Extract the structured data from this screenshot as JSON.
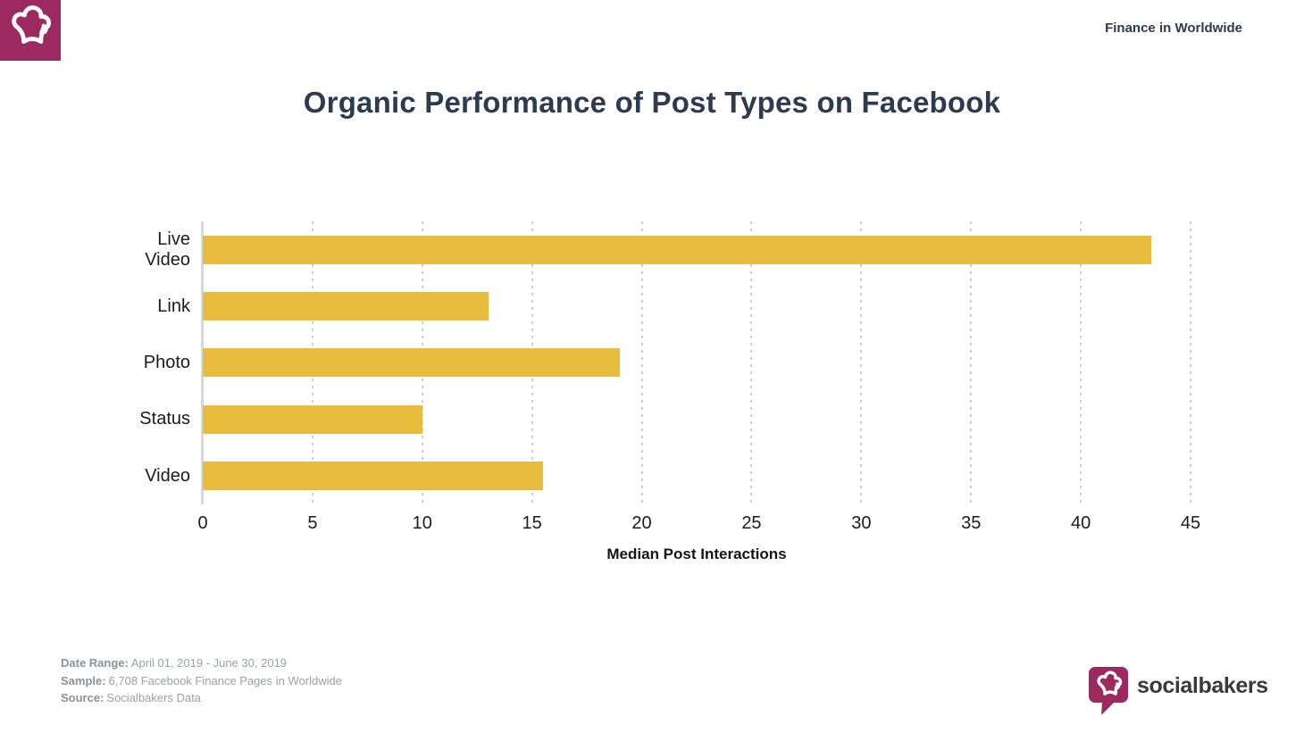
{
  "header": {
    "brand_icon": "chef-hat-icon",
    "scope": "Finance in Worldwide"
  },
  "title": "Organic Performance of Post Types on Facebook",
  "chart_data": {
    "type": "bar",
    "orientation": "horizontal",
    "categories": [
      "Live Video",
      "Link",
      "Photo",
      "Status",
      "Video"
    ],
    "values": [
      43.2,
      13,
      19,
      10,
      15.5
    ],
    "title": "Organic Performance of Post Types on Facebook",
    "xlabel": "Median Post Interactions",
    "ylabel": "",
    "xlim": [
      0,
      45
    ],
    "xticks": [
      0,
      5,
      10,
      15,
      20,
      25,
      30,
      35,
      40,
      45
    ],
    "grid": "dotted-vertical",
    "legend": "none",
    "bar_color": "#e8bc3f"
  },
  "footer": {
    "items": [
      {
        "label": "Date Range:",
        "value": "April 01, 2019 - June 30, 2019"
      },
      {
        "label": "Sample:",
        "value": "6,708 Facebook Finance Pages in Worldwide"
      },
      {
        "label": "Source:",
        "value": "Socialbakers Data"
      }
    ],
    "brand": "socialbakers"
  },
  "colors": {
    "brand_magenta": "#9c2a60",
    "bar_yellow": "#e8bc3f",
    "title_navy": "#2d3b4f",
    "footer_gray": "#9aa1a8"
  }
}
